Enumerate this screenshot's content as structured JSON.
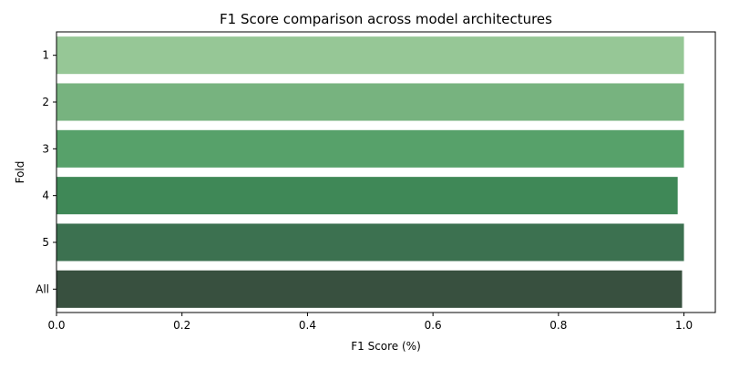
{
  "chart_data": {
    "type": "bar",
    "orientation": "horizontal",
    "title": "F1 Score comparison across model architectures",
    "xlabel": "F1 Score (%)",
    "ylabel": "Fold",
    "categories": [
      "1",
      "2",
      "3",
      "4",
      "5",
      "All"
    ],
    "values": [
      1.0,
      1.0,
      1.0,
      0.99,
      1.0,
      0.997
    ],
    "colors": [
      "#96c796",
      "#77b37f",
      "#57a16a",
      "#3f8857",
      "#3c7150",
      "#38503f"
    ],
    "xlim": [
      0,
      1.05
    ],
    "xticks": [
      0.0,
      0.2,
      0.4,
      0.6,
      0.8,
      1.0
    ],
    "xtick_labels": [
      "0.0",
      "0.2",
      "0.4",
      "0.6",
      "0.8",
      "1.0"
    ],
    "grid": false,
    "legend": "none"
  }
}
